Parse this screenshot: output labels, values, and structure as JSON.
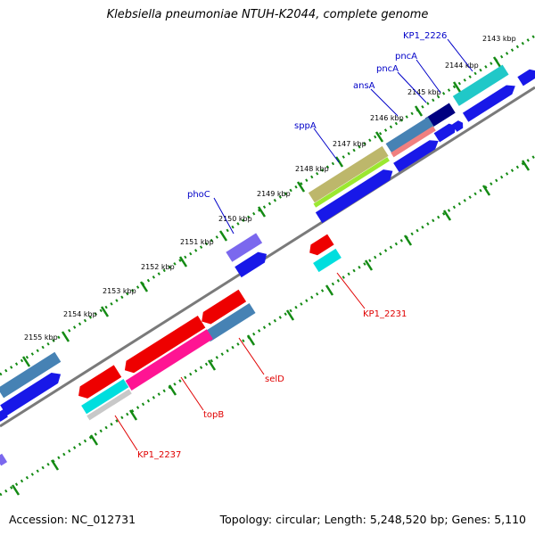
{
  "title": "Klebsiella pneumoniae NTUH-K2044, complete genome",
  "footer": {
    "accession": "Accession: NC_012731",
    "stats": "Topology: circular; Length: 5,248,520 bp; Genes: 5,110"
  },
  "colors": {
    "backbone": "#7a7a7a",
    "tick": "#138a13",
    "forward_label": "#0000c8",
    "reverse_label": "#e00000"
  },
  "ticks": [
    {
      "label": "2143 kbp"
    },
    {
      "label": "2144 kbp"
    },
    {
      "label": "2145 kbp"
    },
    {
      "label": "2146 kbp"
    },
    {
      "label": "2147 kbp"
    },
    {
      "label": "2148 kbp"
    },
    {
      "label": "2149 kbp"
    },
    {
      "label": "2150 kbp"
    },
    {
      "label": "2151 kbp"
    },
    {
      "label": "2152 kbp"
    },
    {
      "label": "2153 kbp"
    },
    {
      "label": "2154 kbp"
    },
    {
      "label": "2155 kbp"
    }
  ],
  "genes": [
    {
      "name": "KP1_2226",
      "strand": "forward"
    },
    {
      "name": "pncA",
      "strand": "forward"
    },
    {
      "name": "pncA",
      "strand": "forward"
    },
    {
      "name": "ansA",
      "strand": "forward"
    },
    {
      "name": "sppA",
      "strand": "forward"
    },
    {
      "name": "phoC",
      "strand": "forward"
    },
    {
      "name": "KP1_2231",
      "strand": "reverse"
    },
    {
      "name": "selD",
      "strand": "reverse"
    },
    {
      "name": "topB",
      "strand": "reverse"
    },
    {
      "name": "KP1_2237",
      "strand": "reverse"
    }
  ]
}
